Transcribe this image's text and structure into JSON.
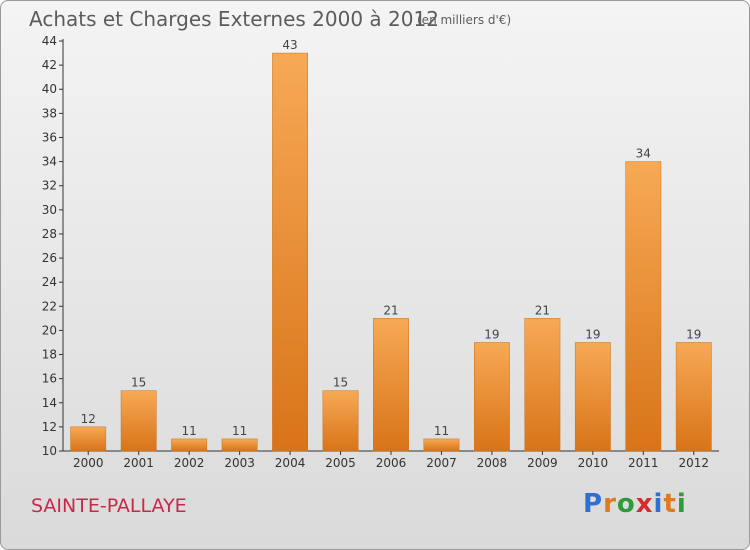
{
  "header": {
    "title": "Achats et Charges Externes 2000 à 2012",
    "subtitle": "(en milliers d'€)"
  },
  "footer": {
    "commune": "SAINTE-PALLAYE",
    "logo": {
      "letters": [
        "P",
        "r",
        "o",
        "x",
        "i",
        "t",
        "i"
      ],
      "colors": [
        "#2f6fd0",
        "#e07a1f",
        "#2f9a3a",
        "#d22c2c",
        "#2f6fd0",
        "#e07a1f",
        "#2f9a3a"
      ]
    }
  },
  "chart_data": {
    "type": "bar",
    "categories": [
      "2000",
      "2001",
      "2002",
      "2003",
      "2004",
      "2005",
      "2006",
      "2007",
      "2008",
      "2009",
      "2010",
      "2011",
      "2012"
    ],
    "values": [
      12,
      15,
      11,
      11,
      43,
      15,
      21,
      11,
      19,
      21,
      19,
      34,
      19
    ],
    "title": "Achats et Charges Externes 2000 à 2012",
    "subtitle": "(en milliers d'€)",
    "ylim": [
      10,
      44
    ],
    "yticks": [
      10,
      12,
      14,
      16,
      18,
      20,
      22,
      24,
      26,
      28,
      30,
      32,
      34,
      36,
      38,
      40,
      42,
      44
    ],
    "grid": false,
    "bar_color": "#f29a3d"
  }
}
